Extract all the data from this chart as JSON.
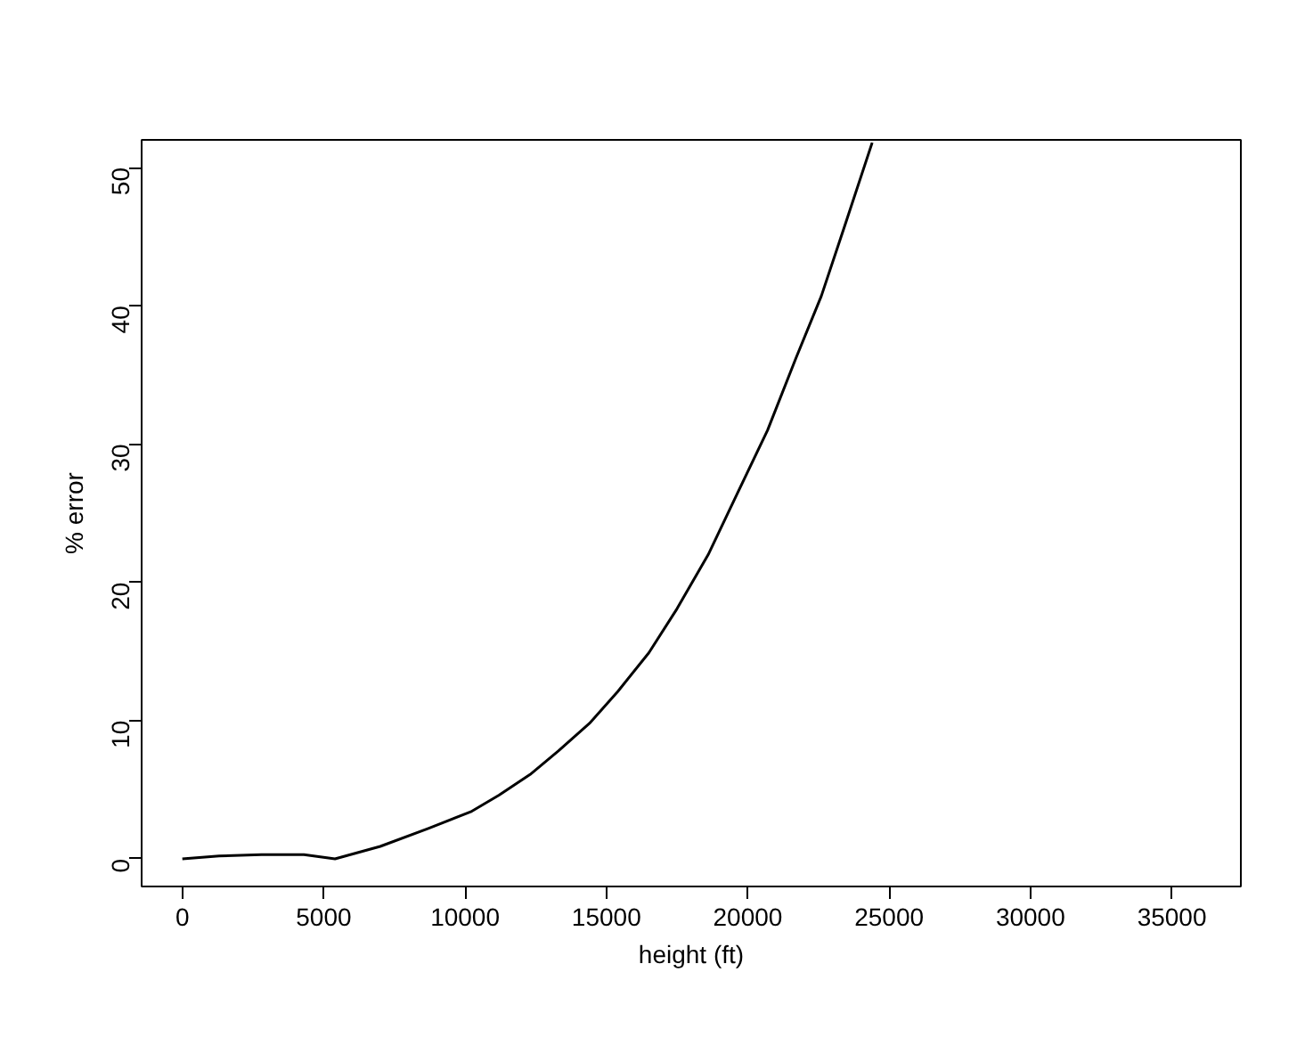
{
  "chart_data": {
    "type": "line",
    "xlabel": "height (ft)",
    "ylabel": "% error",
    "x": [
      0,
      1300,
      2800,
      4300,
      5400,
      7000,
      8700,
      10200,
      11200,
      12300,
      13300,
      14400,
      15400,
      16500,
      17500,
      18600,
      19600,
      20700,
      21700,
      22600,
      23400,
      24400
    ],
    "series": [
      {
        "color": "#000000",
        "values": [
          0,
          0.2,
          0.3,
          0.3,
          0,
          0.9,
          2.2,
          3.4,
          4.6,
          6.1,
          7.8,
          9.8,
          12.1,
          14.9,
          18.1,
          22.0,
          26.3,
          31.0,
          36.2,
          40.7,
          45.6,
          51.8
        ]
      }
    ],
    "xlim": [
      -1440,
      37440
    ],
    "ylim": [
      -2,
      52
    ],
    "xticks": [
      0,
      5000,
      10000,
      15000,
      20000,
      25000,
      30000,
      35000
    ],
    "yticks": [
      0,
      10,
      20,
      30,
      40,
      50
    ],
    "grid": false,
    "marker": "none",
    "line_style": "solid"
  }
}
